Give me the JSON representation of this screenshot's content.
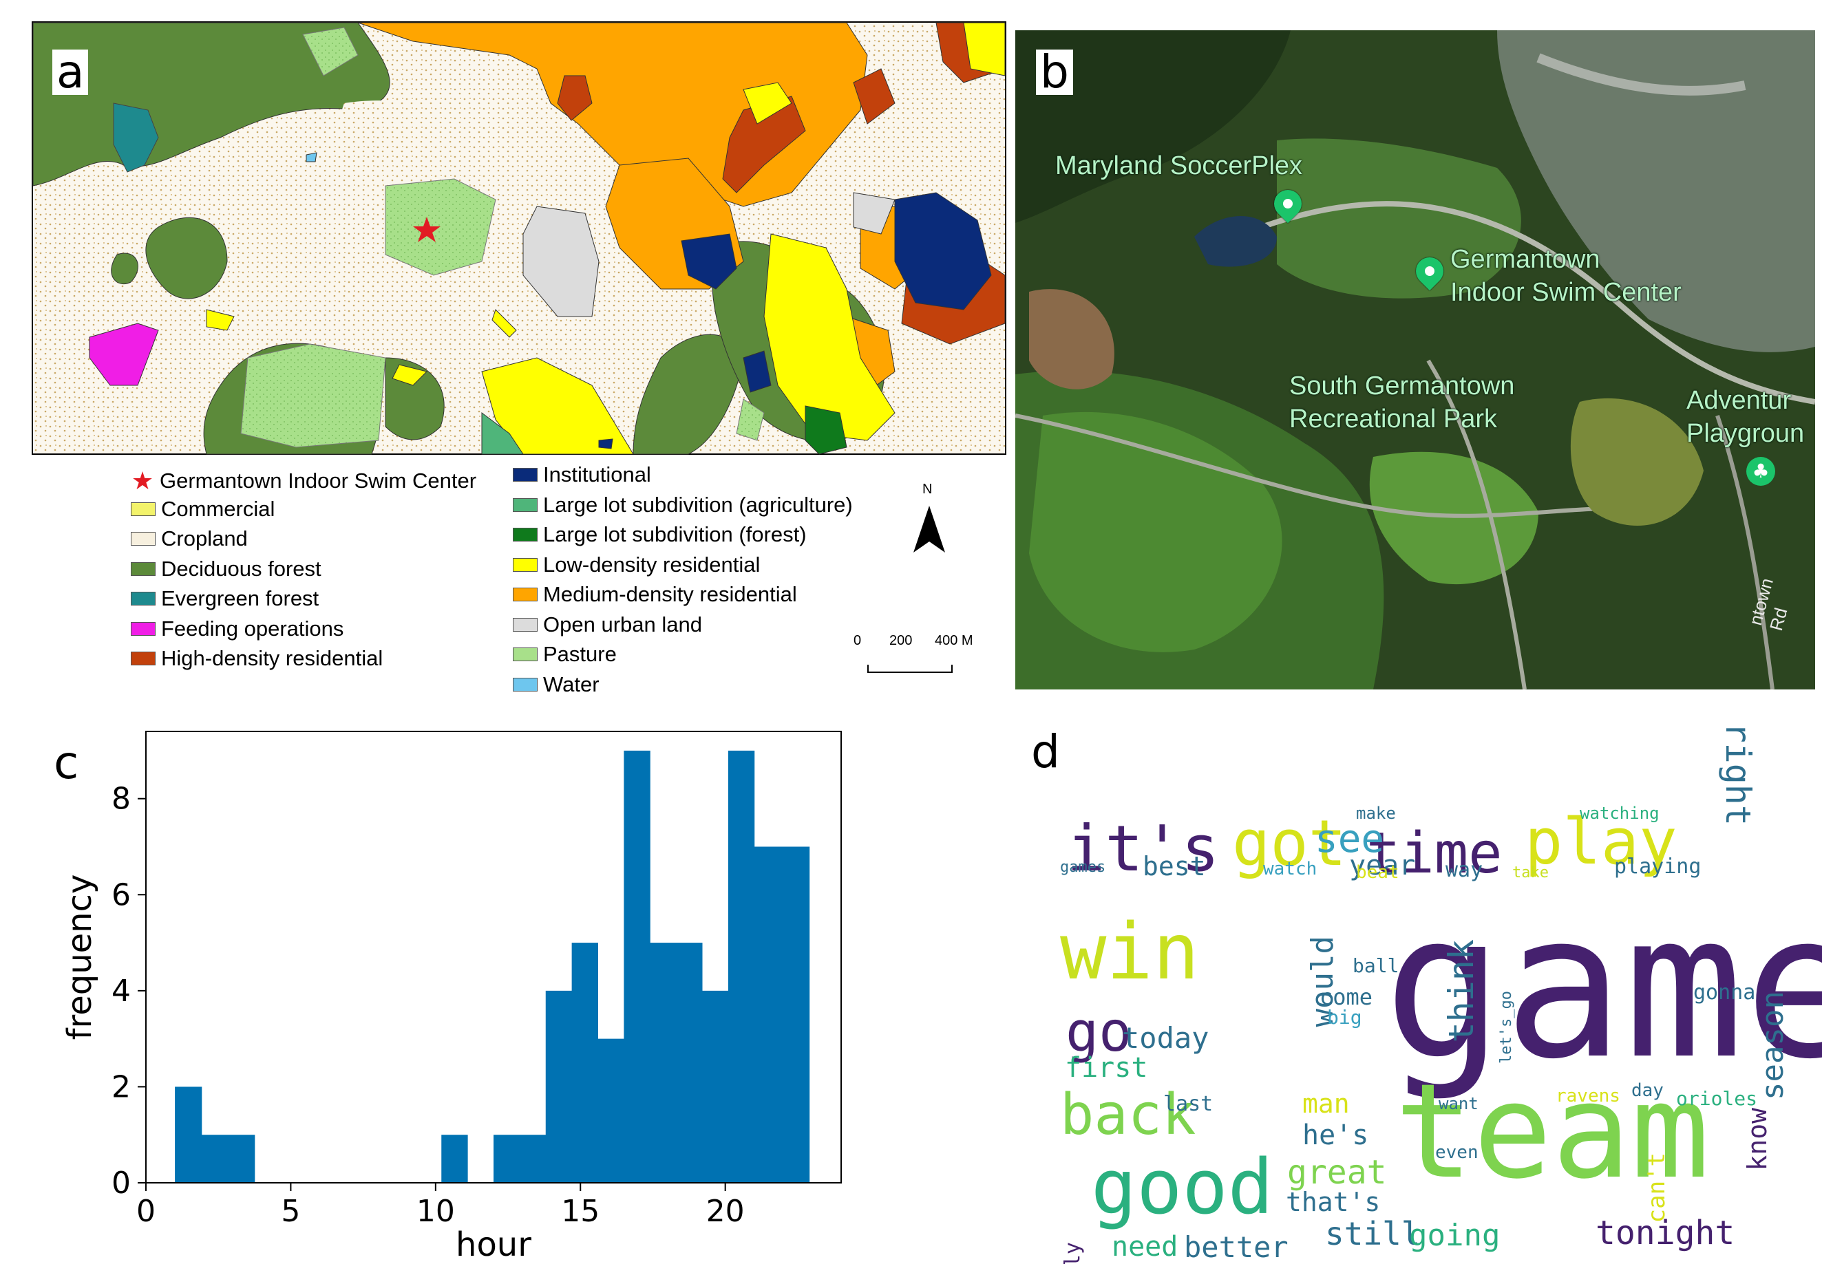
{
  "panels": {
    "a": {
      "label": "a",
      "legend": [
        {
          "label": "Germantown Indoor Swim Center",
          "color": "#e21b23",
          "symbol": "star"
        },
        {
          "label": "Commercial",
          "color": "#f3f36b"
        },
        {
          "label": "Cropland",
          "color": "#f7f0df"
        },
        {
          "label": "Deciduous forest",
          "color": "#5c8a3a"
        },
        {
          "label": "Evergreen forest",
          "color": "#1e8a8e"
        },
        {
          "label": "Feeding operations",
          "color": "#f01ee6"
        },
        {
          "label": "High-density residential",
          "color": "#c2410c"
        },
        {
          "label": "Institutional",
          "color": "#0a2b7a"
        },
        {
          "label": "Large lot subdivition (agriculture)",
          "color": "#4fb57a"
        },
        {
          "label": "Large lot subdivition (forest)",
          "color": "#0f7a1c"
        },
        {
          "label": "Low-density residential",
          "color": "#ffff00"
        },
        {
          "label": "Medium-density residential",
          "color": "#ffa500"
        },
        {
          "label": "Open urban land",
          "color": "#dcdcdc"
        },
        {
          "label": "Pasture",
          "color": "#a8e08a"
        },
        {
          "label": "Water",
          "color": "#6ec6ee"
        }
      ],
      "north": "N",
      "scale": {
        "ticks": [
          "0",
          "200",
          "400 M"
        ]
      }
    },
    "b": {
      "label": "b",
      "places": [
        "Maryland SoccerPlex",
        "Germantown\nIndoor Swim Center",
        "South Germantown\nRecreational Park",
        "Adventur\nPlaygroun",
        "ntown Rd"
      ]
    },
    "c": {
      "label": "c"
    },
    "d": {
      "label": "d"
    }
  },
  "chart_data": {
    "type": "bar",
    "title": "",
    "xlabel": "hour",
    "ylabel": "frequency",
    "xlim": [
      0,
      24
    ],
    "ylim": [
      0,
      9.4
    ],
    "xticks": [
      0,
      5,
      10,
      15,
      20
    ],
    "yticks": [
      0,
      2,
      4,
      6,
      8
    ],
    "bar_color": "#0072b2",
    "bins": [
      {
        "start": 1.0,
        "end": 1.92,
        "value": 2
      },
      {
        "start": 1.92,
        "end": 3.75,
        "value": 1
      },
      {
        "start": 10.2,
        "end": 11.1,
        "value": 1
      },
      {
        "start": 12.0,
        "end": 13.8,
        "value": 1
      },
      {
        "start": 13.8,
        "end": 14.7,
        "value": 4
      },
      {
        "start": 14.7,
        "end": 15.6,
        "value": 5
      },
      {
        "start": 15.6,
        "end": 16.5,
        "value": 3
      },
      {
        "start": 16.5,
        "end": 17.4,
        "value": 9
      },
      {
        "start": 17.4,
        "end": 19.2,
        "value": 5
      },
      {
        "start": 19.2,
        "end": 20.1,
        "value": 4
      },
      {
        "start": 20.1,
        "end": 21.0,
        "value": 9
      },
      {
        "start": 21.0,
        "end": 22.9,
        "value": 7
      }
    ]
  },
  "wordcloud": [
    {
      "text": "game",
      "color": "#45216e"
    },
    {
      "text": "team",
      "color": "#7ed34f"
    },
    {
      "text": "it's",
      "color": "#45216e"
    },
    {
      "text": "got",
      "color": "#d5e21a"
    },
    {
      "text": "time",
      "color": "#45216e"
    },
    {
      "text": "play",
      "color": "#d8e219"
    },
    {
      "text": "win",
      "color": "#c8e020"
    },
    {
      "text": "go",
      "color": "#45216e"
    },
    {
      "text": "good",
      "color": "#2ab07f"
    },
    {
      "text": "back",
      "color": "#7ed34f"
    },
    {
      "text": "see",
      "color": "#38a0bf"
    },
    {
      "text": "year",
      "color": "#2e6f8e"
    },
    {
      "text": "best",
      "color": "#2e6f8e"
    },
    {
      "text": "make",
      "color": "#2e6f8e"
    },
    {
      "text": "watching",
      "color": "#2ab07f"
    },
    {
      "text": "right",
      "color": "#2e6f8e"
    },
    {
      "text": "games",
      "color": "#2e6f8e"
    },
    {
      "text": "watch",
      "color": "#38a0bf"
    },
    {
      "text": "beat",
      "color": "#d8e219"
    },
    {
      "text": "way",
      "color": "#2e6f8e"
    },
    {
      "text": "take",
      "color": "#c8e020"
    },
    {
      "text": "playing",
      "color": "#2e6f8e"
    },
    {
      "text": "would",
      "color": "#2e6f8e"
    },
    {
      "text": "ball",
      "color": "#2e6f8e"
    },
    {
      "text": "come",
      "color": "#2e6f8e"
    },
    {
      "text": "big",
      "color": "#38a0bf"
    },
    {
      "text": "think",
      "color": "#2e6f8e"
    },
    {
      "text": "let's_go",
      "color": "#2e6f8e"
    },
    {
      "text": "gonna",
      "color": "#2e6f8e"
    },
    {
      "text": "season",
      "color": "#2e6f8e"
    },
    {
      "text": "today",
      "color": "#2e6f8e"
    },
    {
      "text": "first",
      "color": "#2ab07f"
    },
    {
      "text": "last",
      "color": "#2e6f8e"
    },
    {
      "text": "man",
      "color": "#d8e219"
    },
    {
      "text": "want",
      "color": "#2e6f8e"
    },
    {
      "text": "ravens",
      "color": "#d8e219"
    },
    {
      "text": "day",
      "color": "#2e6f8e"
    },
    {
      "text": "orioles",
      "color": "#2ab07f"
    },
    {
      "text": "he's",
      "color": "#2e6f8e"
    },
    {
      "text": "know",
      "color": "#45216e"
    },
    {
      "text": "great",
      "color": "#7ed34f"
    },
    {
      "text": "even",
      "color": "#2e6f8e"
    },
    {
      "text": "can't",
      "color": "#d8e219"
    },
    {
      "text": "really",
      "color": "#45216e"
    },
    {
      "text": "that's",
      "color": "#2e6f8e"
    },
    {
      "text": "need",
      "color": "#2ab07f"
    },
    {
      "text": "better",
      "color": "#2e6f8e"
    },
    {
      "text": "still",
      "color": "#2e6f8e"
    },
    {
      "text": "going",
      "color": "#2ab07f"
    },
    {
      "text": "tonight",
      "color": "#45216e"
    }
  ]
}
